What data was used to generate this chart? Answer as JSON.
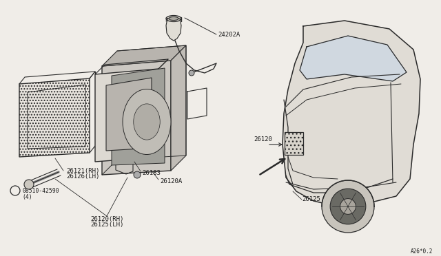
{
  "background_color": "#f0ede8",
  "line_color": "#2a2a2a",
  "text_color": "#1a1a1a",
  "page_code": "A26*0.2",
  "figsize": [
    6.4,
    3.72
  ],
  "dpi": 100,
  "labels": {
    "24202A": "24202A",
    "26121RH": "26121(RH)",
    "26126LH": "26126(LH)",
    "26183": "26183",
    "26120A": "26120A",
    "screw": "08510-42590",
    "screw2": "(4)",
    "26120RH": "26120(RH)",
    "26125LH": "26125(LH)",
    "26120car": "26120",
    "26125car": "26125"
  }
}
